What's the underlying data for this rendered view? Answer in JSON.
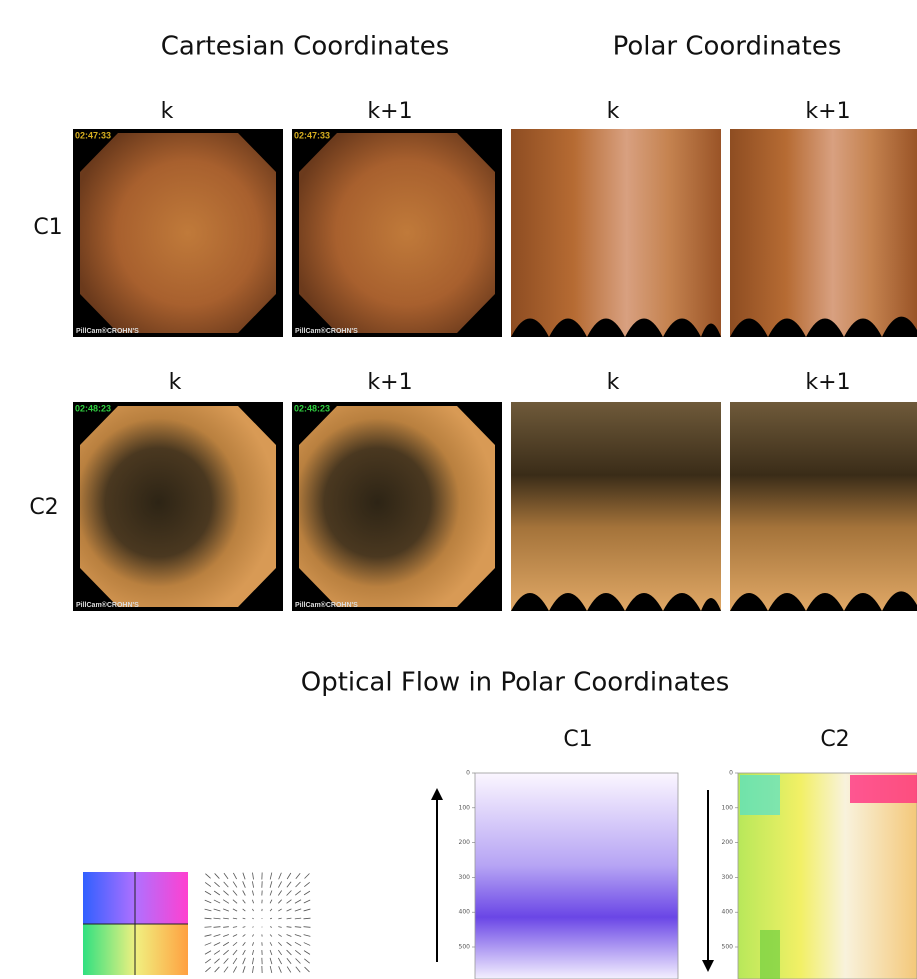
{
  "titles": {
    "cartesian": "Cartesian Coordinates",
    "polar": "Polar Coordinates",
    "flow": "Optical Flow in Polar Coordinates"
  },
  "rows": [
    {
      "label": "C1",
      "frames": [
        "k",
        "k+1",
        "k",
        "k+1"
      ],
      "timestamp": "02:47:33",
      "brand": "PillCam®CROHN'S"
    },
    {
      "label": "C2",
      "frames": [
        "k",
        "k+1",
        "k",
        "k+1"
      ],
      "timestamp": "02:48:23",
      "brand": "PillCam®CROHN'S"
    }
  ],
  "flow_plots": [
    {
      "label": "C1",
      "yticks": [
        0,
        100,
        200,
        300,
        400,
        500
      ]
    },
    {
      "label": "C2",
      "yticks": [
        0,
        100,
        200,
        300,
        400,
        500
      ]
    }
  ]
}
